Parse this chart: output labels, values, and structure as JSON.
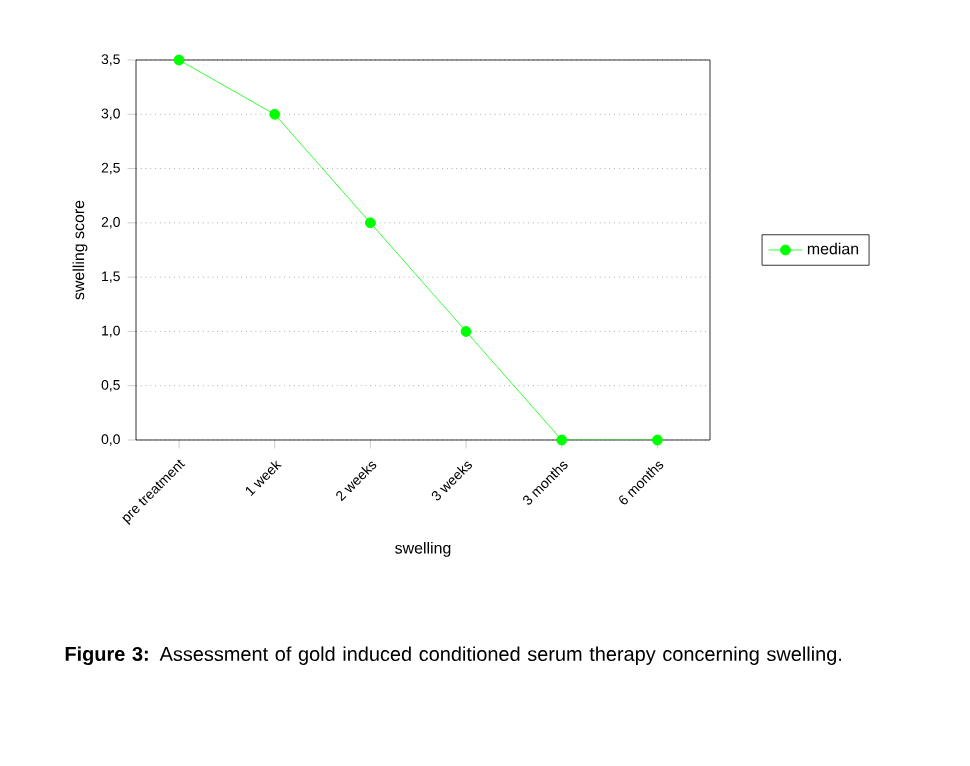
{
  "chart_data": {
    "type": "line",
    "xlabel": "swelling",
    "ylabel": "swelling score",
    "categories": [
      "pre treatment",
      "1 week",
      "2 weeks",
      "3 weeks",
      "3 months",
      "6 months"
    ],
    "series": [
      {
        "name": "median",
        "color": "#00ff00",
        "values": [
          3.5,
          3.0,
          2.0,
          1.0,
          0.0,
          0.0
        ]
      }
    ],
    "ylim": [
      0,
      3.5
    ],
    "yticks": [
      {
        "value": 0,
        "label": "0,0"
      },
      {
        "value": 0.5,
        "label": "0,5"
      },
      {
        "value": 1,
        "label": "1,0"
      },
      {
        "value": 1.5,
        "label": "1,5"
      },
      {
        "value": 2,
        "label": "2,0"
      },
      {
        "value": 2.5,
        "label": "2,5"
      },
      {
        "value": 3,
        "label": "3,0"
      },
      {
        "value": 3.5,
        "label": "3,5"
      }
    ],
    "grid": "y",
    "legend": "right",
    "marker": "circle",
    "line_style": "solid",
    "annotations": [
      "**Figure 3:** Assessment of gold induced conditioned serum therapy concerning swelling."
    ]
  }
}
